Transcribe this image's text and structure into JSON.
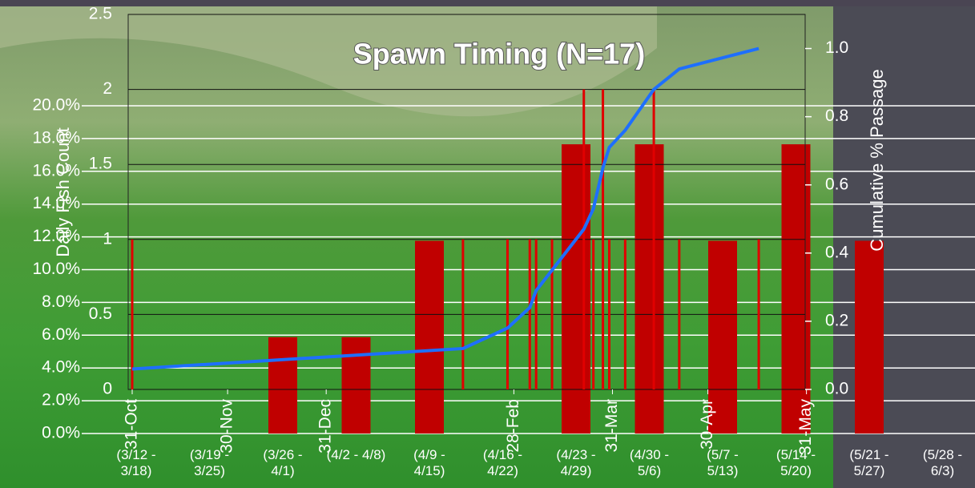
{
  "chart_data": [
    {
      "type": "bar",
      "categories": [
        "(3/12 - 3/18)",
        "(3/19 - 3/25)",
        "(3/26 - 4/1)",
        "(4/2 - 4/8)",
        "(4/9 - 4/15)",
        "(4/16 - 4/22)",
        "(4/23 - 4/29)",
        "(4/30 - 5/6)",
        "(5/7 - 5/13)",
        "(5/14 - 5/20)",
        "(5/21 - 5/27)",
        "(5/28 - 6/3)"
      ],
      "values": [
        0,
        0,
        5.88,
        5.88,
        11.76,
        0,
        17.65,
        17.65,
        11.76,
        17.65,
        11.76,
        0
      ],
      "color": "#c00000",
      "ylim": [
        0,
        20
      ],
      "yticks": [
        {
          "value": 0,
          "label": "0.0%"
        },
        {
          "value": 2,
          "label": "2.0%"
        },
        {
          "value": 4,
          "label": "4.0%"
        },
        {
          "value": 6,
          "label": "6.0%"
        },
        {
          "value": 8,
          "label": "8.0%"
        },
        {
          "value": 10,
          "label": "10.0%"
        },
        {
          "value": 12,
          "label": "12.0%"
        },
        {
          "value": 14,
          "label": "14.0%"
        },
        {
          "value": 16,
          "label": "16.0%"
        },
        {
          "value": 18,
          "label": "18.0%"
        },
        {
          "value": 20,
          "label": "20.0%"
        }
      ],
      "grid": true
    },
    {
      "type": "combo",
      "title": "Spawn Timing (N=17)",
      "y_label": "Daily Fish Count",
      "y2_label": "Cumulative % Passage",
      "x": [
        "31-Oct",
        "12-Feb",
        "26-Feb",
        "5-Mar",
        "7-Mar",
        "12-Mar",
        "22-Mar",
        "25-Mar",
        "28-Mar",
        "30-Mar",
        "4-Apr",
        "13-Apr",
        "21-Apr",
        "16-May"
      ],
      "xticks": [
        "31-Oct",
        "30-Nov",
        "31-Dec",
        "28-Feb",
        "31-Mar",
        "30-Apr",
        "31-May"
      ],
      "series": [
        {
          "name": "Daily Fish Count",
          "type": "bar",
          "color": "#e00000",
          "values": [
            1,
            1,
            1,
            1,
            1,
            1,
            2,
            1,
            2,
            1,
            1,
            2,
            1,
            1
          ]
        },
        {
          "name": "Cumulative % Passage",
          "type": "line",
          "axis": "y2",
          "color": "#1e6fff",
          "values": [
            0.06,
            0.12,
            0.18,
            0.24,
            0.29,
            0.35,
            0.47,
            0.53,
            0.65,
            0.71,
            0.76,
            0.88,
            0.94,
            1.0
          ]
        }
      ],
      "ylim": [
        0,
        2.5
      ],
      "yticks": [
        0,
        0.5,
        1,
        1.5,
        2,
        2.5
      ],
      "y2lim": [
        0,
        1.1
      ],
      "y2ticks": [
        {
          "value": 0,
          "label": "0.0"
        },
        0.2,
        0.4,
        0.6,
        0.8,
        {
          "value": 1,
          "label": "1.0"
        }
      ]
    }
  ]
}
